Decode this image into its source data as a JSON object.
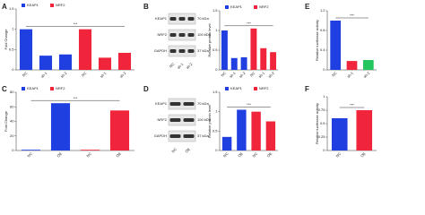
{
  "chart_data": [
    {
      "type": "bar",
      "panel": "A",
      "ylabel": "Fold Change",
      "categories": [
        "NC",
        "sh-1",
        "sh-2",
        "NC",
        "sh-1",
        "sh-2"
      ],
      "values": [
        1,
        0.35,
        0.38,
        1,
        0.3,
        0.42
      ],
      "colors": [
        "#1f3fe0",
        "#1f3fe0",
        "#1f3fe0",
        "#f0243a",
        "#f0243a",
        "#f0243a"
      ],
      "legend": [
        {
          "name": "KEAP1",
          "color": "#1f3fe0"
        },
        {
          "name": "NRF2",
          "color": "#f0243a"
        }
      ],
      "annotation": "***",
      "ylim": [
        0,
        1.5
      ],
      "yticks": [
        0,
        0.5,
        1,
        1.5
      ]
    },
    {
      "type": "bar",
      "panel": "B",
      "ylabel": "Relative protein level",
      "categories": [
        "NC",
        "sh-1",
        "sh-2",
        "NC",
        "sh-1",
        "sh-2"
      ],
      "values": [
        1,
        0.3,
        0.32,
        1.05,
        0.55,
        0.45
      ],
      "colors": [
        "#1f3fe0",
        "#1f3fe0",
        "#1f3fe0",
        "#f0243a",
        "#f0243a",
        "#f0243a"
      ],
      "legend": [
        {
          "name": "KEAP1",
          "color": "#1f3fe0"
        },
        {
          "name": "NRF2",
          "color": "#f0243a"
        }
      ],
      "annotation": "***",
      "ylim": [
        0,
        1.5
      ],
      "yticks": [
        0,
        0.5,
        1,
        1.5
      ]
    },
    {
      "type": "bar",
      "panel": "C",
      "ylabel": "Fold Change",
      "categories": [
        "NC",
        "OE",
        "NC",
        "OE"
      ],
      "values": [
        1,
        65,
        1,
        55
      ],
      "colors": [
        "#1f3fe0",
        "#1f3fe0",
        "#f0243a",
        "#f0243a"
      ],
      "legend": [
        {
          "name": "KEAP1",
          "color": "#1f3fe0"
        },
        {
          "name": "NRF2",
          "color": "#f0243a"
        }
      ],
      "annotation": "***",
      "ylim": [
        0,
        80
      ],
      "yticks": [
        0,
        20,
        40,
        60,
        80
      ]
    },
    {
      "type": "bar",
      "panel": "D",
      "ylabel": "Relative protein level",
      "categories": [
        "NC",
        "OE",
        "NC",
        "OE"
      ],
      "values": [
        0.35,
        1.05,
        1,
        0.75
      ],
      "colors": [
        "#1f3fe0",
        "#1f3fe0",
        "#f0243a",
        "#f0243a"
      ],
      "legend": [
        {
          "name": "KEAP1",
          "color": "#1f3fe0"
        },
        {
          "name": "NRF2",
          "color": "#f0243a"
        }
      ],
      "annotation": "***",
      "ylim": [
        0,
        1.5
      ],
      "yticks": [
        0,
        0.5,
        1,
        1.5
      ]
    },
    {
      "type": "bar",
      "panel": "E",
      "ylabel": "Relative luciferase activity",
      "categories": [
        "NC",
        "sh-1",
        "sh-2"
      ],
      "values": [
        1,
        0.18,
        0.2
      ],
      "colors": [
        "#1f3fe0",
        "#f0243a",
        "#22c55e"
      ],
      "annotation": "***",
      "ylim": [
        0,
        1.2
      ],
      "yticks": [
        0,
        0.4,
        0.8,
        1.2
      ]
    },
    {
      "type": "bar",
      "panel": "F",
      "ylabel": "Relative luciferase activity",
      "categories": [
        "NC",
        "OE"
      ],
      "values": [
        0.6,
        0.75
      ],
      "colors": [
        "#1f3fe0",
        "#f0243a"
      ],
      "annotation": "***",
      "ylim": [
        0,
        1
      ],
      "yticks": [
        0,
        0.25,
        0.5,
        0.75,
        1
      ]
    }
  ],
  "blots": [
    {
      "panel": "B",
      "rows": [
        {
          "label": "KEAP1",
          "size": "70 kDa"
        },
        {
          "label": "NRF2",
          "size": "100 kDa"
        },
        {
          "label": "GAPDH",
          "size": "37 kDa"
        }
      ],
      "lanes": [
        "NC",
        "sh-1",
        "sh-2"
      ]
    },
    {
      "panel": "D",
      "rows": [
        {
          "label": "KEAP1",
          "size": "70 kDa"
        },
        {
          "label": "NRF2",
          "size": "100 kDa"
        },
        {
          "label": "GAPDH",
          "size": "37 kDa"
        }
      ],
      "lanes": [
        "NC",
        "OE"
      ]
    }
  ]
}
